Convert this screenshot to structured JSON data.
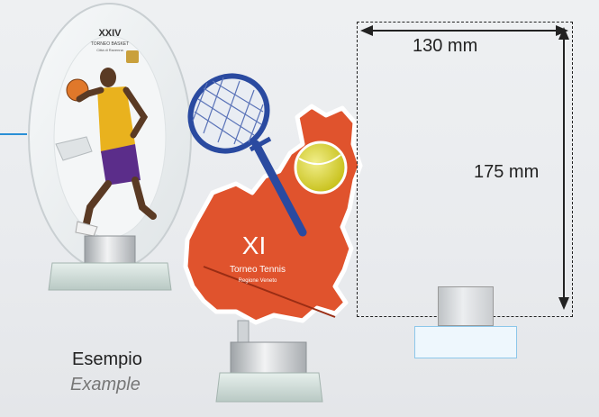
{
  "dimensions": {
    "width_label": "130 mm",
    "height_label": "175 mm"
  },
  "caption": {
    "it": "Esempio",
    "en": "Example"
  },
  "basketball_trophy": {
    "title": "XXIV",
    "subtitle": "TORNEO BASKET",
    "line3": "Città di Ravenna"
  },
  "tennis_trophy": {
    "numeral": "XI",
    "title": "Torneo Tennis",
    "subtitle": "Regione Veneto"
  },
  "colors": {
    "accent": "#2a8fd6",
    "map_fill": "#e0532d",
    "racket": "#2a4aa0",
    "ball": "#d9d431"
  }
}
